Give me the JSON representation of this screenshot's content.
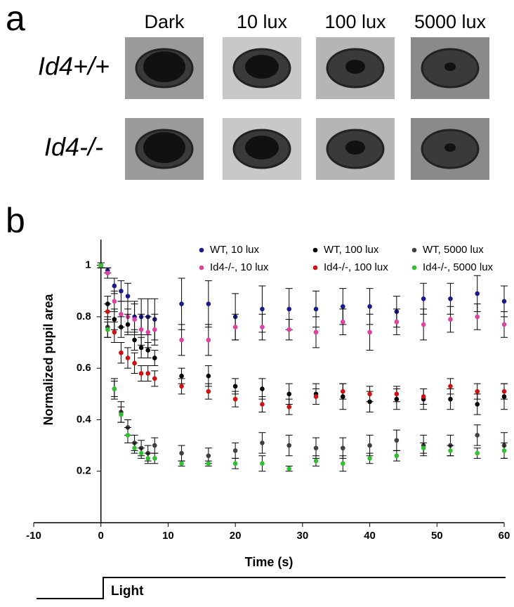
{
  "figure": {
    "panel_a": "a",
    "panel_b": "b",
    "columns": [
      "Dark",
      "10 lux",
      "100 lux",
      "5000 lux"
    ],
    "rows": [
      "Id4+/+",
      "Id4-/-"
    ],
    "stimulus_label": "Light"
  },
  "chart_data": {
    "type": "scatter",
    "x_label": "Time (s)",
    "y_label": "Normalized pupil area",
    "x": [
      0,
      1,
      2,
      3,
      4,
      5,
      6,
      7,
      8,
      12,
      16,
      20,
      24,
      28,
      32,
      36,
      40,
      44,
      48,
      52,
      56,
      60
    ],
    "series": [
      {
        "name": "WT, 10 lux",
        "color": "#1a1a8c",
        "values": [
          1.0,
          0.98,
          0.92,
          0.9,
          0.88,
          0.8,
          0.8,
          0.8,
          0.79,
          0.85,
          0.85,
          0.8,
          0.83,
          0.83,
          0.83,
          0.84,
          0.84,
          0.82,
          0.87,
          0.87,
          0.89,
          0.86
        ],
        "errors": [
          0.01,
          0.01,
          0.03,
          0.04,
          0.05,
          0.06,
          0.07,
          0.07,
          0.08,
          0.1,
          0.09,
          0.09,
          0.09,
          0.08,
          0.07,
          0.07,
          0.07,
          0.06,
          0.06,
          0.06,
          0.07,
          0.06
        ]
      },
      {
        "name": "Id4-/-, 10 lux",
        "color": "#e040a0",
        "values": [
          1.0,
          0.97,
          0.86,
          0.81,
          0.8,
          0.79,
          0.75,
          0.74,
          0.75,
          0.71,
          0.71,
          0.76,
          0.76,
          0.75,
          0.74,
          0.78,
          0.74,
          0.78,
          0.77,
          0.79,
          0.8,
          0.77
        ],
        "errors": [
          0.01,
          0.02,
          0.04,
          0.05,
          0.06,
          0.06,
          0.06,
          0.06,
          0.06,
          0.06,
          0.06,
          0.05,
          0.05,
          0.04,
          0.06,
          0.05,
          0.07,
          0.05,
          0.06,
          0.05,
          0.05,
          0.05
        ]
      },
      {
        "name": "WT, 100 lux",
        "color": "#000000",
        "values": [
          1.0,
          0.85,
          0.79,
          0.76,
          0.77,
          0.71,
          0.68,
          0.67,
          0.64,
          0.57,
          0.57,
          0.53,
          0.52,
          0.5,
          0.5,
          0.49,
          0.47,
          0.48,
          0.48,
          0.48,
          0.46,
          0.49
        ],
        "errors": [
          0.01,
          0.03,
          0.04,
          0.04,
          0.04,
          0.04,
          0.04,
          0.03,
          0.03,
          0.03,
          0.04,
          0.03,
          0.04,
          0.04,
          0.04,
          0.05,
          0.04,
          0.04,
          0.04,
          0.04,
          0.04,
          0.05
        ]
      },
      {
        "name": "Id4-/-, 100 lux",
        "color": "#d01010",
        "values": [
          1.0,
          0.82,
          0.74,
          0.66,
          0.64,
          0.62,
          0.58,
          0.58,
          0.56,
          0.53,
          0.51,
          0.48,
          0.46,
          0.45,
          0.49,
          0.51,
          0.5,
          0.5,
          0.49,
          0.53,
          0.51,
          0.51
        ],
        "errors": [
          0.01,
          0.03,
          0.04,
          0.04,
          0.04,
          0.04,
          0.03,
          0.03,
          0.03,
          0.03,
          0.03,
          0.03,
          0.03,
          0.03,
          0.03,
          0.03,
          0.03,
          0.03,
          0.03,
          0.03,
          0.03,
          0.03
        ]
      },
      {
        "name": "WT, 5000 lux",
        "color": "#404040",
        "values": [
          1.0,
          0.76,
          0.52,
          0.43,
          0.37,
          0.31,
          0.29,
          0.27,
          0.3,
          0.27,
          0.26,
          0.28,
          0.31,
          0.3,
          0.29,
          0.29,
          0.3,
          0.32,
          0.3,
          0.3,
          0.34,
          0.3
        ],
        "errors": [
          0.01,
          0.04,
          0.04,
          0.04,
          0.03,
          0.03,
          0.03,
          0.03,
          0.03,
          0.03,
          0.03,
          0.03,
          0.04,
          0.04,
          0.04,
          0.04,
          0.04,
          0.04,
          0.04,
          0.04,
          0.04,
          0.05
        ]
      },
      {
        "name": "Id4-/-, 5000 lux",
        "color": "#30c030",
        "values": [
          1.0,
          0.75,
          0.52,
          0.42,
          0.34,
          0.29,
          0.27,
          0.25,
          0.25,
          0.23,
          0.23,
          0.23,
          0.23,
          0.21,
          0.24,
          0.23,
          0.25,
          0.26,
          0.29,
          0.28,
          0.27,
          0.28
        ],
        "errors": [
          0.01,
          0.03,
          0.03,
          0.03,
          0.03,
          0.02,
          0.02,
          0.02,
          0.02,
          0.01,
          0.01,
          0.02,
          0.03,
          0.01,
          0.02,
          0.03,
          0.02,
          0.02,
          0.02,
          0.02,
          0.02,
          0.03
        ]
      }
    ],
    "xlim": [
      -10,
      60
    ],
    "xticks": [
      -10,
      0,
      10,
      20,
      30,
      40,
      50,
      60
    ],
    "ylim": [
      0,
      1.1
    ],
    "yticks": [
      0.2,
      0.4,
      0.6,
      0.8,
      1
    ]
  }
}
